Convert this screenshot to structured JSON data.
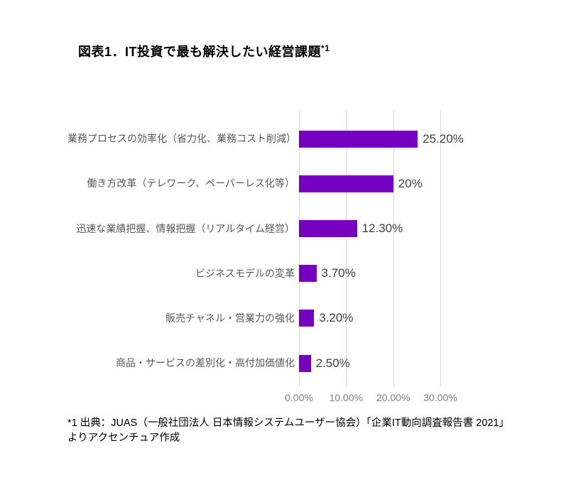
{
  "title": {
    "text": "図表1．IT投資で最も解決したい経営課題",
    "superscript": "*1"
  },
  "chart_data": {
    "type": "bar",
    "orientation": "horizontal",
    "title": "図表1．IT投資で最も解決したい経営課題*1",
    "categories": [
      "業務プロセスの効率化（省力化、業務コスト削減）",
      "働き方改革（テレワーク、ペーパーレス化等）",
      "迅速な業績把握、情報把握（リアルタイム経営）",
      "ビジネスモデルの変革",
      "販売チャネル・営業力の強化",
      "商品・サービスの差別化・高付加価値化"
    ],
    "values": [
      25.2,
      20,
      12.3,
      3.7,
      3.2,
      2.5
    ],
    "value_labels": [
      "25.20%",
      "20%",
      "12.30%",
      "3.70%",
      "3.20%",
      "2.50%"
    ],
    "xlabel": "",
    "ylabel": "",
    "x_ticks": [
      "0.00%",
      "10.00%",
      "20.00%",
      "30.00%"
    ],
    "x_tick_values": [
      0,
      10,
      20,
      30
    ],
    "xlim": [
      0,
      36
    ],
    "grid": true,
    "legend": false
  },
  "footnote": "*1 出典：JUAS（一般社団法人 日本情報システムユーザー協会）「企業IT動向調査報告書 2021」よりアクセンチュア作成",
  "colors": {
    "bar": "#7500C0",
    "gridline": "#D9D9D9",
    "category_label": "#595959",
    "value_label": "#404040",
    "tick_label": "#7F7F7F",
    "title": "#000000"
  }
}
